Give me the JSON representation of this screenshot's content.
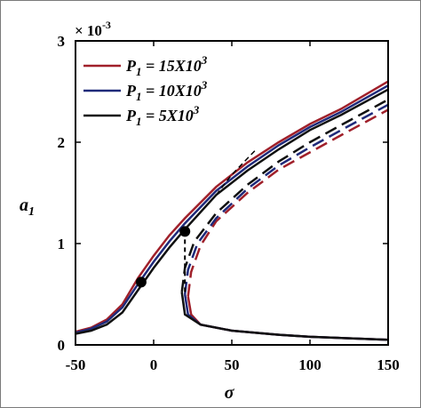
{
  "chart_data": {
    "type": "line",
    "xlabel": "σ",
    "ylabel_main": "a",
    "ylabel_sub": "1",
    "y_scale_label": "× 10",
    "y_scale_exp": "-3",
    "xlim": [
      -50,
      150
    ],
    "ylim": [
      0,
      3
    ],
    "x_ticks": [
      -50,
      0,
      50,
      100,
      150
    ],
    "y_ticks": [
      0,
      1,
      2,
      3
    ],
    "x_tick_labels": [
      "-50",
      "0",
      "50",
      "100",
      "150"
    ],
    "y_tick_labels": [
      "0",
      "1",
      "2",
      "3"
    ],
    "legend_position": "top-left",
    "series": [
      {
        "name": "P_1 = 15X10^3",
        "legend_main": "P",
        "legend_sub": "1",
        "legend_eq": " = 15X10",
        "legend_exp": "3",
        "color": "#a0202a",
        "stable_upper": [
          [
            -50,
            0.13
          ],
          [
            -40,
            0.17
          ],
          [
            -30,
            0.25
          ],
          [
            -20,
            0.4
          ],
          [
            -10,
            0.66
          ],
          [
            0,
            0.88
          ],
          [
            10,
            1.08
          ],
          [
            20,
            1.25
          ],
          [
            40,
            1.56
          ],
          [
            60,
            1.8
          ],
          [
            80,
            2.0
          ],
          [
            100,
            2.18
          ],
          [
            120,
            2.33
          ],
          [
            150,
            2.6
          ]
        ],
        "unstable_middle": [
          [
            22,
            0.48
          ],
          [
            24,
            0.72
          ],
          [
            30,
            0.98
          ],
          [
            40,
            1.22
          ],
          [
            60,
            1.5
          ],
          [
            80,
            1.73
          ],
          [
            100,
            1.9
          ],
          [
            120,
            2.07
          ],
          [
            150,
            2.32
          ]
        ],
        "stable_lower": [
          [
            22,
            0.48
          ],
          [
            24,
            0.3
          ],
          [
            30,
            0.2
          ],
          [
            50,
            0.14
          ],
          [
            80,
            0.1
          ],
          [
            100,
            0.08
          ],
          [
            150,
            0.05
          ]
        ]
      },
      {
        "name": "P_1 = 10X10^3",
        "legend_main": "P",
        "legend_sub": "1",
        "legend_eq": " = 10X10",
        "legend_exp": "3",
        "color": "#1f2a7a",
        "stable_upper": [
          [
            -50,
            0.12
          ],
          [
            -40,
            0.16
          ],
          [
            -30,
            0.23
          ],
          [
            -20,
            0.37
          ],
          [
            -10,
            0.6
          ],
          [
            0,
            0.82
          ],
          [
            10,
            1.02
          ],
          [
            20,
            1.2
          ],
          [
            40,
            1.52
          ],
          [
            60,
            1.76
          ],
          [
            80,
            1.97
          ],
          [
            100,
            2.15
          ],
          [
            120,
            2.3
          ],
          [
            150,
            2.56
          ]
        ],
        "unstable_middle": [
          [
            20,
            0.5
          ],
          [
            22,
            0.74
          ],
          [
            28,
            1.0
          ],
          [
            40,
            1.25
          ],
          [
            60,
            1.54
          ],
          [
            80,
            1.77
          ],
          [
            100,
            1.95
          ],
          [
            120,
            2.12
          ],
          [
            150,
            2.37
          ]
        ],
        "stable_lower": [
          [
            20,
            0.5
          ],
          [
            22,
            0.3
          ],
          [
            30,
            0.2
          ],
          [
            50,
            0.14
          ],
          [
            80,
            0.1
          ],
          [
            100,
            0.08
          ],
          [
            150,
            0.05
          ]
        ]
      },
      {
        "name": "P_1 = 5X10^3",
        "legend_main": "P",
        "legend_sub": "1",
        "legend_eq": " = 5X10",
        "legend_exp": "3",
        "color": "#111111",
        "stable_upper": [
          [
            -50,
            0.11
          ],
          [
            -40,
            0.14
          ],
          [
            -30,
            0.2
          ],
          [
            -20,
            0.32
          ],
          [
            -10,
            0.54
          ],
          [
            0,
            0.76
          ],
          [
            10,
            0.96
          ],
          [
            20,
            1.14
          ],
          [
            40,
            1.48
          ],
          [
            60,
            1.72
          ],
          [
            80,
            1.93
          ],
          [
            100,
            2.12
          ],
          [
            120,
            2.27
          ],
          [
            150,
            2.52
          ]
        ],
        "unstable_middle": [
          [
            18,
            0.52
          ],
          [
            20,
            0.76
          ],
          [
            26,
            1.02
          ],
          [
            40,
            1.3
          ],
          [
            60,
            1.58
          ],
          [
            80,
            1.81
          ],
          [
            100,
            2.0
          ],
          [
            120,
            2.17
          ],
          [
            150,
            2.42
          ]
        ],
        "stable_lower": [
          [
            18,
            0.52
          ],
          [
            20,
            0.3
          ],
          [
            30,
            0.2
          ],
          [
            50,
            0.14
          ],
          [
            80,
            0.1
          ],
          [
            100,
            0.08
          ],
          [
            150,
            0.05
          ]
        ]
      }
    ],
    "jump_markers": [
      {
        "x": -8,
        "y": 0.62
      },
      {
        "x": 20,
        "y": 1.12
      }
    ],
    "jump_line_vertical": {
      "x": 20,
      "y_from": 1.12,
      "y_to": 0.5
    },
    "backbone_dashed": [
      [
        40,
        1.48
      ],
      [
        50,
        1.68
      ],
      [
        65,
        1.92
      ]
    ]
  }
}
